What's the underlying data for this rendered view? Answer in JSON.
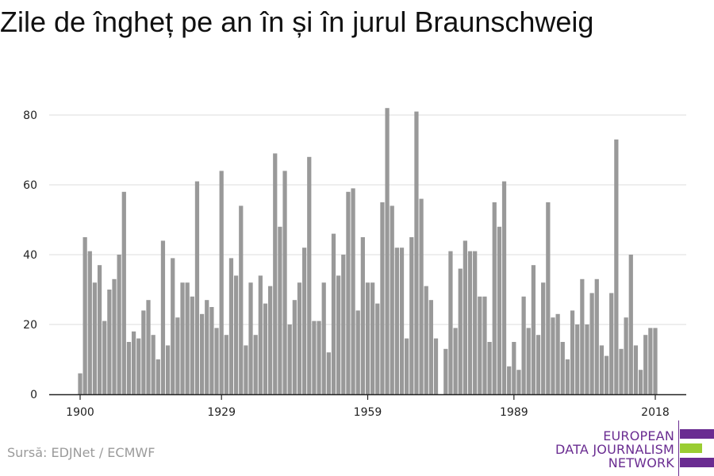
{
  "page": {
    "title": "Zile de îngheț pe an în și în jurul Braunschweig",
    "source": "Sursă: EDJNet / ECMWF"
  },
  "logo": {
    "lines": [
      "EUROPEAN",
      "DATA JOURNALISM",
      "NETWORK"
    ],
    "colors": {
      "purple": "#6a2c91",
      "green": "#9acd32"
    }
  },
  "chart_data": {
    "type": "bar",
    "bar_color": "#999999",
    "grid": true,
    "ylim": [
      0,
      85
    ],
    "yticks": [
      0,
      20,
      40,
      60,
      80
    ],
    "xtick_labels": [
      "1900",
      "1929",
      "1959",
      "1989",
      "2018"
    ],
    "x": [
      1900,
      1901,
      1902,
      1903,
      1904,
      1905,
      1906,
      1907,
      1908,
      1909,
      1910,
      1911,
      1912,
      1913,
      1914,
      1915,
      1916,
      1917,
      1918,
      1919,
      1920,
      1921,
      1922,
      1923,
      1924,
      1925,
      1926,
      1927,
      1928,
      1929,
      1930,
      1931,
      1932,
      1933,
      1934,
      1935,
      1936,
      1937,
      1938,
      1939,
      1940,
      1941,
      1942,
      1943,
      1944,
      1945,
      1946,
      1947,
      1948,
      1949,
      1950,
      1951,
      1952,
      1953,
      1954,
      1955,
      1956,
      1957,
      1958,
      1959,
      1960,
      1961,
      1962,
      1963,
      1964,
      1965,
      1966,
      1967,
      1968,
      1969,
      1970,
      1971,
      1972,
      1973,
      1974,
      1975,
      1976,
      1977,
      1978,
      1979,
      1980,
      1981,
      1982,
      1983,
      1984,
      1985,
      1986,
      1987,
      1988,
      1989,
      1990,
      1991,
      1992,
      1993,
      1994,
      1995,
      1996,
      1997,
      1998,
      1999,
      2000,
      2001,
      2002,
      2003,
      2004,
      2005,
      2006,
      2007,
      2008,
      2009,
      2010,
      2011,
      2012,
      2013,
      2014,
      2015,
      2016,
      2017,
      2018
    ],
    "values": [
      6,
      45,
      41,
      32,
      37,
      21,
      30,
      33,
      40,
      58,
      15,
      18,
      16,
      24,
      27,
      17,
      10,
      44,
      14,
      39,
      22,
      32,
      32,
      28,
      61,
      23,
      27,
      25,
      19,
      64,
      17,
      39,
      34,
      54,
      14,
      32,
      17,
      34,
      26,
      31,
      69,
      48,
      64,
      20,
      27,
      32,
      42,
      68,
      21,
      21,
      32,
      12,
      46,
      34,
      40,
      58,
      59,
      24,
      45,
      32,
      32,
      26,
      55,
      82,
      54,
      42,
      42,
      16,
      45,
      81,
      56,
      31,
      27,
      16,
      0,
      13,
      41,
      19,
      36,
      44,
      41,
      41,
      28,
      28,
      15,
      55,
      48,
      61,
      8,
      15,
      7,
      28,
      19,
      37,
      17,
      32,
      55,
      22,
      23,
      15,
      10,
      24,
      20,
      33,
      20,
      29,
      33,
      14,
      11,
      29,
      73,
      13,
      22,
      40,
      14,
      7,
      17,
      19,
      19
    ]
  }
}
